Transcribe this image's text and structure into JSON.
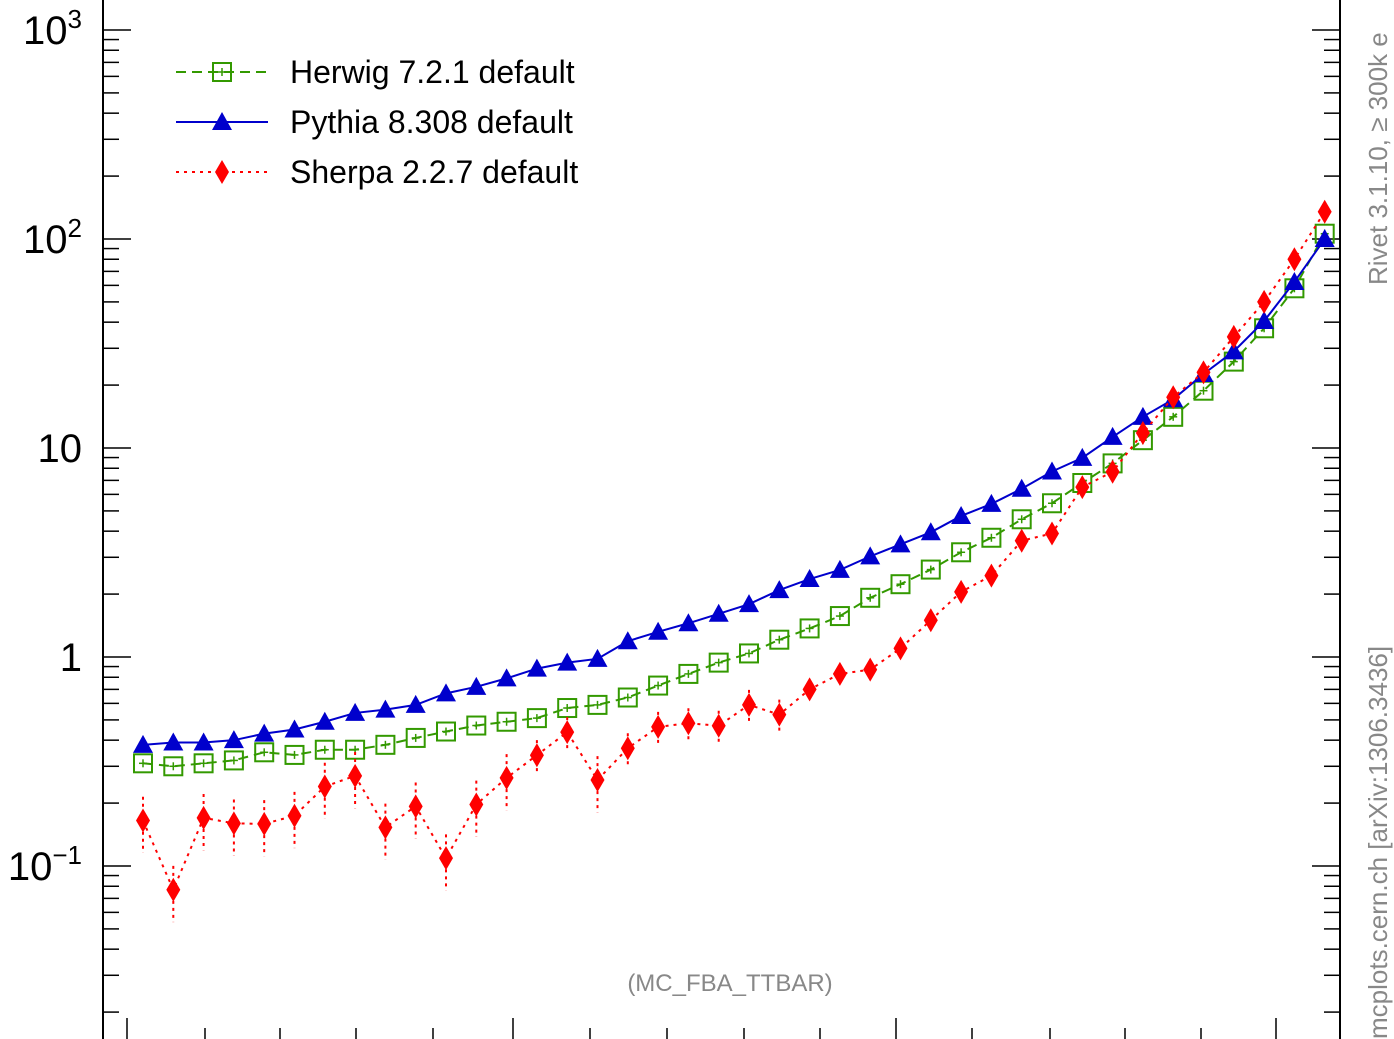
{
  "chart_data": {
    "type": "scatter",
    "title": "",
    "xlabel": "",
    "ylabel": "",
    "yscale": "log",
    "ylim": [
      0.02,
      1000
    ],
    "y_tick_labels": [
      {
        "value": 1000,
        "label": "10^3"
      },
      {
        "value": 100,
        "label": "10^2"
      },
      {
        "value": 10,
        "label": "10"
      },
      {
        "value": 1,
        "label": "1"
      },
      {
        "value": 0.1,
        "label": "10^−1"
      }
    ],
    "x": [
      1,
      2,
      3,
      4,
      5,
      6,
      7,
      8,
      9,
      10,
      11,
      12,
      13,
      14,
      15,
      16,
      17,
      18,
      19,
      20,
      21,
      22,
      23,
      24,
      25,
      26,
      27,
      28,
      29,
      30,
      31,
      32,
      33,
      34,
      35,
      36,
      37,
      38,
      39,
      40
    ],
    "xlim": [
      0.1,
      41.1
    ],
    "series": [
      {
        "name": "Herwig 7.2.1 default",
        "color": "#339900",
        "marker": "open-square",
        "line": "dashed",
        "values": [
          0.31,
          0.3,
          0.31,
          0.32,
          0.35,
          0.34,
          0.36,
          0.36,
          0.38,
          0.41,
          0.44,
          0.47,
          0.49,
          0.51,
          0.57,
          0.59,
          0.64,
          0.73,
          0.83,
          0.94,
          1.04,
          1.21,
          1.37,
          1.57,
          1.92,
          2.23,
          2.62,
          3.17,
          3.72,
          4.56,
          5.44,
          6.8,
          8.44,
          10.9,
          14.1,
          18.8,
          25.9,
          37.4,
          58.1,
          106
        ]
      },
      {
        "name": "Pythia 8.308 default",
        "color": "#0000cc",
        "marker": "filled-triangle",
        "line": "solid",
        "values": [
          0.38,
          0.39,
          0.39,
          0.4,
          0.43,
          0.45,
          0.49,
          0.54,
          0.56,
          0.59,
          0.67,
          0.72,
          0.79,
          0.88,
          0.94,
          0.98,
          1.19,
          1.32,
          1.45,
          1.61,
          1.79,
          2.09,
          2.36,
          2.61,
          3.03,
          3.46,
          3.95,
          4.73,
          5.4,
          6.38,
          7.72,
          8.97,
          11.3,
          14.1,
          17.1,
          22.6,
          29.0,
          40.5,
          62.3,
          100
        ]
      },
      {
        "name": "Sherpa 2.2.7 default",
        "color": "#ff0000",
        "marker": "filled-diamond",
        "line": "dotted",
        "values": [
          0.165,
          0.077,
          0.17,
          0.16,
          0.159,
          0.174,
          0.24,
          0.27,
          0.153,
          0.193,
          0.109,
          0.197,
          0.264,
          0.339,
          0.437,
          0.258,
          0.366,
          0.463,
          0.482,
          0.469,
          0.59,
          0.53,
          0.7,
          0.83,
          0.87,
          1.1,
          1.5,
          2.05,
          2.45,
          3.6,
          3.9,
          6.5,
          7.7,
          11.8,
          17.5,
          23.0,
          34.0,
          50.0,
          80.0,
          135
        ]
      }
    ],
    "legend_position": "top-left",
    "annotations": [
      "(MC_FBA_TTBAR)"
    ],
    "side_labels": [
      "Rivet 3.1.10, ≥ 300k e",
      "mcplots.cern.ch [arXiv:1306.3436]"
    ]
  }
}
